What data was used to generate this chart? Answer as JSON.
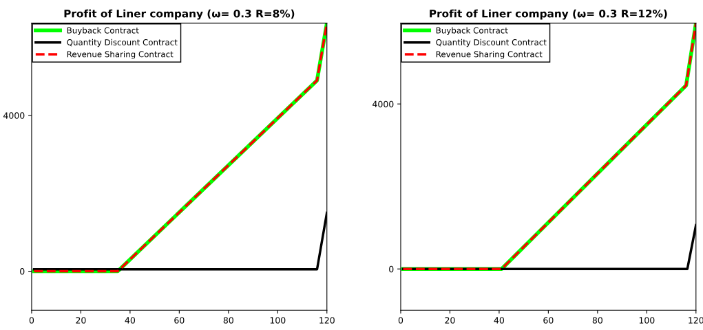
{
  "chart_data": [
    {
      "type": "line",
      "title": "Profit of Liner company (ω= 0.3 R=8%)",
      "xlim": [
        0,
        120
      ],
      "xticks": [
        0,
        20,
        40,
        60,
        80,
        100,
        120
      ],
      "ylim": [
        -1000,
        6370
      ],
      "yticks": [
        0,
        4000
      ],
      "legend": "top left",
      "grid": false,
      "series": [
        {
          "name": "Buyback Contract",
          "color": "#00ff00",
          "line_style": "solid",
          "x": [
            1,
            35,
            116,
            120
          ],
          "values": [
            0,
            0,
            4900,
            6370
          ]
        },
        {
          "name": "Quantity Discount Contract",
          "color": "#000000",
          "line_style": "solid",
          "x": [
            1,
            116,
            120
          ],
          "values": [
            50,
            50,
            1500
          ]
        },
        {
          "name": "Revenue Sharing Contract",
          "color": "#ff0000",
          "line_style": "dashed",
          "x": [
            1,
            35,
            116,
            120
          ],
          "values": [
            0,
            0,
            4900,
            6370
          ]
        }
      ]
    },
    {
      "type": "line",
      "title": "Profit of Liner company (ω= 0.3 R=12%)",
      "xlim": [
        0,
        120
      ],
      "xticks": [
        0,
        20,
        40,
        60,
        80,
        100,
        120
      ],
      "ylim": [
        -1000,
        5960
      ],
      "yticks": [
        0,
        4000
      ],
      "legend": "top left",
      "grid": false,
      "series": [
        {
          "name": "Buyback Contract",
          "color": "#00ff00",
          "line_style": "solid",
          "x": [
            1,
            41,
            116,
            120
          ],
          "values": [
            0,
            0,
            4450,
            5960
          ]
        },
        {
          "name": "Quantity Discount Contract",
          "color": "#000000",
          "line_style": "solid",
          "x": [
            1,
            116.5,
            120
          ],
          "values": [
            0,
            0,
            1060
          ]
        },
        {
          "name": "Revenue Sharing Contract",
          "color": "#ff0000",
          "line_style": "dashed",
          "x": [
            1,
            41,
            116,
            120
          ],
          "values": [
            0,
            0,
            4450,
            5960
          ]
        }
      ]
    }
  ]
}
